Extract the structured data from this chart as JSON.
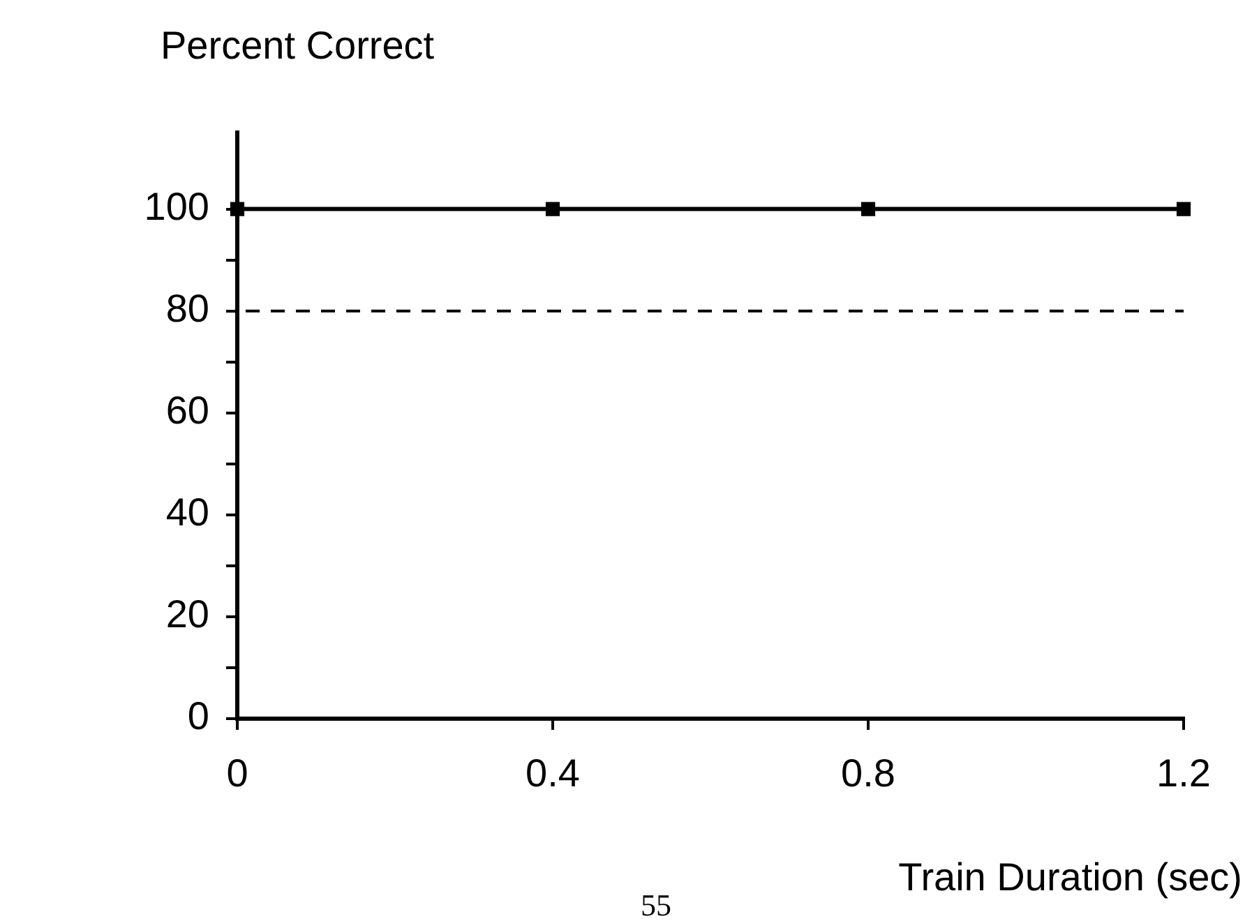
{
  "chart_data": {
    "type": "line",
    "ylabel": "Percent Correct",
    "xlabel": "Train Duration (sec)",
    "x": [
      0,
      0.4,
      0.8,
      1.2
    ],
    "series": [
      {
        "color": "#000000",
        "values": [
          100,
          100,
          100,
          100
        ]
      }
    ],
    "xlim": [
      0,
      1.2
    ],
    "xticks": [
      0,
      0.4,
      0.8,
      1.2
    ],
    "ylim": [
      0,
      115
    ],
    "yticks": [
      0,
      {
        "value": 10,
        "label": null
      },
      20,
      {
        "value": 30,
        "label": null
      },
      40,
      {
        "value": 50,
        "label": null
      },
      60,
      {
        "value": 70,
        "label": null
      },
      80,
      {
        "value": 90,
        "label": null
      },
      100
    ],
    "ref_lines": [
      {
        "axis": "y",
        "value": 80,
        "line_style": "dashed",
        "color": "#000000"
      }
    ],
    "annotations": [
      "55"
    ],
    "marker": "square",
    "line_style": "solid",
    "grid": false,
    "legend": false
  }
}
